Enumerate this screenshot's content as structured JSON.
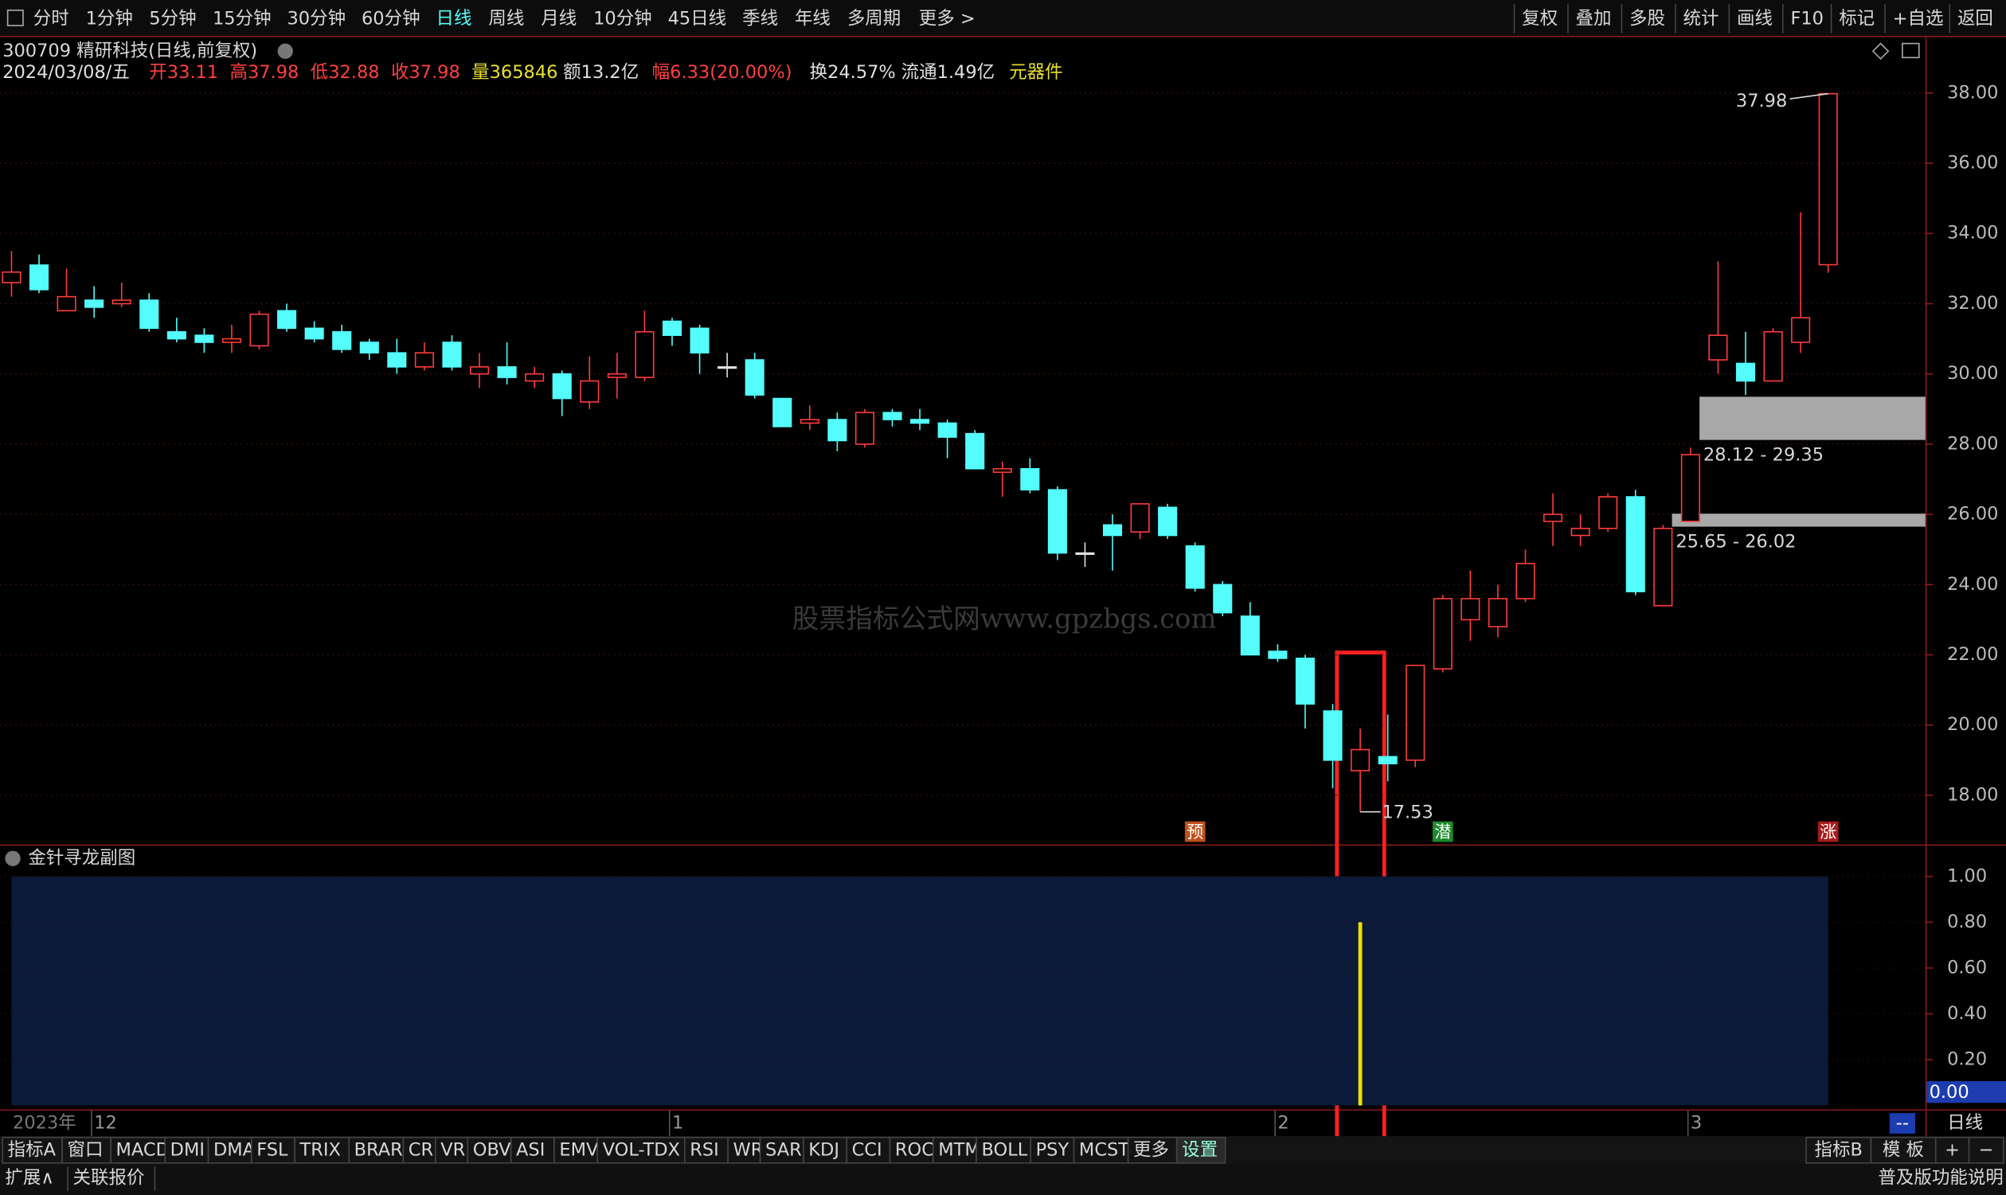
{
  "ui": {
    "toolbar_left": [
      "分时",
      "1分钟",
      "5分钟",
      "15分钟",
      "30分钟",
      "60分钟",
      "日线",
      "周线",
      "月线",
      "10分钟",
      "45日线",
      "季线",
      "年线",
      "多周期",
      "更多 >"
    ],
    "toolbar_active": "日线",
    "toolbar_right": [
      "复权",
      "叠加",
      "多股",
      "统计",
      "画线",
      "F10",
      "标记",
      "+自选",
      "返回"
    ],
    "stock_title": "300709 精研科技(日线,前复权)",
    "info": [
      {
        "text": "2024/03/08/五",
        "color": "#e0e0e0"
      },
      {
        "text": "开33.11",
        "color": "#ff4040"
      },
      {
        "text": "高37.98",
        "color": "#ff4040"
      },
      {
        "text": "低32.88",
        "color": "#ff4040"
      },
      {
        "text": "收37.98",
        "color": "#ff4040"
      },
      {
        "text": "量365846",
        "color": "#e8e030"
      },
      {
        "text": "额13.2亿",
        "color": "#e0e0e0"
      },
      {
        "text": "幅6.33(20.00%)",
        "color": "#ff4040"
      },
      {
        "text": "换24.57%",
        "color": "#e0e0e0"
      },
      {
        "text": "流通1.49亿",
        "color": "#e0e0e0"
      },
      {
        "text": "元器件",
        "color": "#e8e030"
      }
    ],
    "watermark": "股票指标公式网www.gpzbgs.com",
    "year_label": "2023年",
    "tabs": [
      "指标A",
      "窗口",
      "MACD",
      "DMI",
      "DMA",
      "FSL",
      "TRIX",
      "BRAR",
      "CR",
      "VR",
      "OBV",
      "ASI",
      "EMV",
      "VOL-TDX",
      "RSI",
      "WR",
      "SAR",
      "KDJ",
      "CCI",
      "ROC",
      "MTM",
      "BOLL",
      "PSY",
      "MCST",
      "更多",
      "设置"
    ],
    "tabs_right": [
      "指标B",
      "模 板",
      "+",
      "−"
    ],
    "period_label": "日线",
    "period_box": "--",
    "footer_left": [
      "扩展∧",
      "关联报价"
    ],
    "footer_right": "普及版功能说明"
  },
  "chart_data": [
    {
      "type": "candlestick",
      "categories": [
        null,
        null,
        null,
        "12",
        null,
        null,
        null,
        null,
        null,
        null,
        null,
        null,
        null,
        null,
        null,
        null,
        null,
        null,
        null,
        null,
        null,
        null,
        null,
        null,
        "1",
        null,
        null,
        null,
        null,
        null,
        null,
        null,
        null,
        null,
        null,
        null,
        null,
        null,
        null,
        null,
        null,
        null,
        null,
        null,
        null,
        null,
        "2",
        null,
        null,
        null,
        null,
        null,
        null,
        null,
        null,
        null,
        null,
        null,
        null,
        null,
        null,
        "3",
        null,
        null,
        null,
        null,
        null
      ],
      "open": [
        32.6,
        33.1,
        31.8,
        32.1,
        32.0,
        32.1,
        31.2,
        31.1,
        30.9,
        30.8,
        31.8,
        31.3,
        31.2,
        30.9,
        30.6,
        30.2,
        30.9,
        30.0,
        30.2,
        29.8,
        30.0,
        29.2,
        29.9,
        29.9,
        31.5,
        31.3,
        30.2,
        30.4,
        29.3,
        28.6,
        28.7,
        28.0,
        28.9,
        28.7,
        28.6,
        28.3,
        27.2,
        27.3,
        26.7,
        24.9,
        25.7,
        25.5,
        26.2,
        25.1,
        24.0,
        23.1,
        22.1,
        21.9,
        20.4,
        18.7,
        19.1,
        19.0,
        21.6,
        23.0,
        22.8,
        23.6,
        25.8,
        25.4,
        25.6,
        26.5,
        23.4,
        25.8,
        30.4,
        30.3,
        29.8,
        30.9,
        33.11
      ],
      "high": [
        33.5,
        33.4,
        33.0,
        32.5,
        32.6,
        32.3,
        31.6,
        31.3,
        31.4,
        31.8,
        32.0,
        31.5,
        31.4,
        31.0,
        31.0,
        30.9,
        31.1,
        30.6,
        30.9,
        30.2,
        30.1,
        30.5,
        30.6,
        31.8,
        31.6,
        31.4,
        30.6,
        30.6,
        29.3,
        29.1,
        28.9,
        29.0,
        29.0,
        29.0,
        28.7,
        28.4,
        27.5,
        27.6,
        26.8,
        25.2,
        26.0,
        26.3,
        26.3,
        25.2,
        24.1,
        23.5,
        22.3,
        22.0,
        20.6,
        19.9,
        20.3,
        21.7,
        23.7,
        24.4,
        24.0,
        25.0,
        26.6,
        26.0,
        26.6,
        26.7,
        25.7,
        27.9,
        33.2,
        31.2,
        31.3,
        34.6,
        37.98
      ],
      "low": [
        32.2,
        32.3,
        31.8,
        31.6,
        31.9,
        31.2,
        30.9,
        30.6,
        30.6,
        30.7,
        31.2,
        30.9,
        30.6,
        30.4,
        30.0,
        30.1,
        30.1,
        29.6,
        29.7,
        29.6,
        28.8,
        29.0,
        29.3,
        29.8,
        30.8,
        30.0,
        29.9,
        29.3,
        28.5,
        28.4,
        27.8,
        27.9,
        28.5,
        28.4,
        27.6,
        27.3,
        26.5,
        26.6,
        24.7,
        24.5,
        24.4,
        25.3,
        25.3,
        23.8,
        23.1,
        22.0,
        21.8,
        19.9,
        18.2,
        17.53,
        18.4,
        18.8,
        21.5,
        22.4,
        22.5,
        23.5,
        25.1,
        25.1,
        25.5,
        23.7,
        23.4,
        25.8,
        30.0,
        29.4,
        29.8,
        30.6,
        32.88
      ],
      "close": [
        32.9,
        32.4,
        32.2,
        31.9,
        32.1,
        31.3,
        31.0,
        30.9,
        31.0,
        31.7,
        31.3,
        31.0,
        30.7,
        30.6,
        30.2,
        30.6,
        30.2,
        30.2,
        29.9,
        30.0,
        29.3,
        29.8,
        30.0,
        31.2,
        31.1,
        30.6,
        30.2,
        29.4,
        28.5,
        28.7,
        28.1,
        28.9,
        28.7,
        28.6,
        28.2,
        27.3,
        27.3,
        26.7,
        24.9,
        24.9,
        25.4,
        26.3,
        25.4,
        23.9,
        23.2,
        22.0,
        21.9,
        20.6,
        19.0,
        19.3,
        18.9,
        21.7,
        23.6,
        23.6,
        23.6,
        24.6,
        26.0,
        25.6,
        26.5,
        23.8,
        25.6,
        27.7,
        31.1,
        29.8,
        31.2,
        31.6,
        37.98
      ],
      "up_color": "#ff3c3c",
      "down_color": "#54fcfc",
      "flat_color": "#e0e0e0",
      "ylim": [
        16.6,
        38.9
      ],
      "yticks": [
        {
          "value": 18,
          "label": "18.00"
        },
        {
          "value": 20,
          "label": "20.00"
        },
        {
          "value": 22,
          "label": "22.00"
        },
        {
          "value": 24,
          "label": "24.00"
        },
        {
          "value": 26,
          "label": "26.00"
        },
        {
          "value": 28,
          "label": "28.00"
        },
        {
          "value": 30,
          "label": "30.00"
        },
        {
          "value": 32,
          "label": "32.00"
        },
        {
          "value": 34,
          "label": "34.00"
        },
        {
          "value": 36,
          "label": "36.00"
        },
        {
          "value": 38,
          "label": "38.00"
        }
      ],
      "annotations": [
        {
          "text": "37.98",
          "value": 37.98,
          "index": 66
        },
        {
          "text": "17.53",
          "value": 17.53,
          "index": 49
        }
      ],
      "zones": [
        {
          "range": [
            28.12,
            29.35
          ],
          "label": "28.12 - 29.35",
          "start": 61
        },
        {
          "range": [
            25.65,
            26.02
          ],
          "label": "25.65 - 26.02",
          "start": 60
        }
      ],
      "zone_color": "#a8a8a8",
      "signals": [
        {
          "index": 43,
          "label": "预",
          "color": "#c0501c"
        },
        {
          "index": 52,
          "label": "潜",
          "color": "#1c8a2c"
        },
        {
          "index": 66,
          "label": "涨",
          "color": "#a81c1c"
        }
      ]
    },
    {
      "type": "bar",
      "title": "金针寻龙副图",
      "values": [
        null,
        null,
        null,
        null,
        null,
        null,
        null,
        null,
        null,
        null,
        null,
        null,
        null,
        null,
        null,
        null,
        null,
        null,
        null,
        null,
        null,
        null,
        null,
        null,
        null,
        null,
        null,
        null,
        null,
        null,
        null,
        null,
        null,
        null,
        null,
        null,
        null,
        null,
        null,
        null,
        null,
        null,
        null,
        null,
        null,
        null,
        null,
        null,
        null,
        0.8,
        null,
        null,
        null,
        null,
        null,
        null,
        null,
        null,
        null,
        null,
        null,
        null,
        null,
        null,
        null,
        null,
        null
      ],
      "color": "#f0e000",
      "background": "#0a1a38",
      "ylim": [
        0,
        1
      ],
      "yticks": [
        {
          "value": 0.2,
          "label": "0.20"
        },
        {
          "value": 0.4,
          "label": "0.40"
        },
        {
          "value": 0.6,
          "label": "0.60"
        },
        {
          "value": 0.8,
          "label": "0.80"
        },
        {
          "value": 1,
          "label": "1.00"
        }
      ],
      "current_value": 0,
      "current_value_label": "0.00"
    }
  ]
}
